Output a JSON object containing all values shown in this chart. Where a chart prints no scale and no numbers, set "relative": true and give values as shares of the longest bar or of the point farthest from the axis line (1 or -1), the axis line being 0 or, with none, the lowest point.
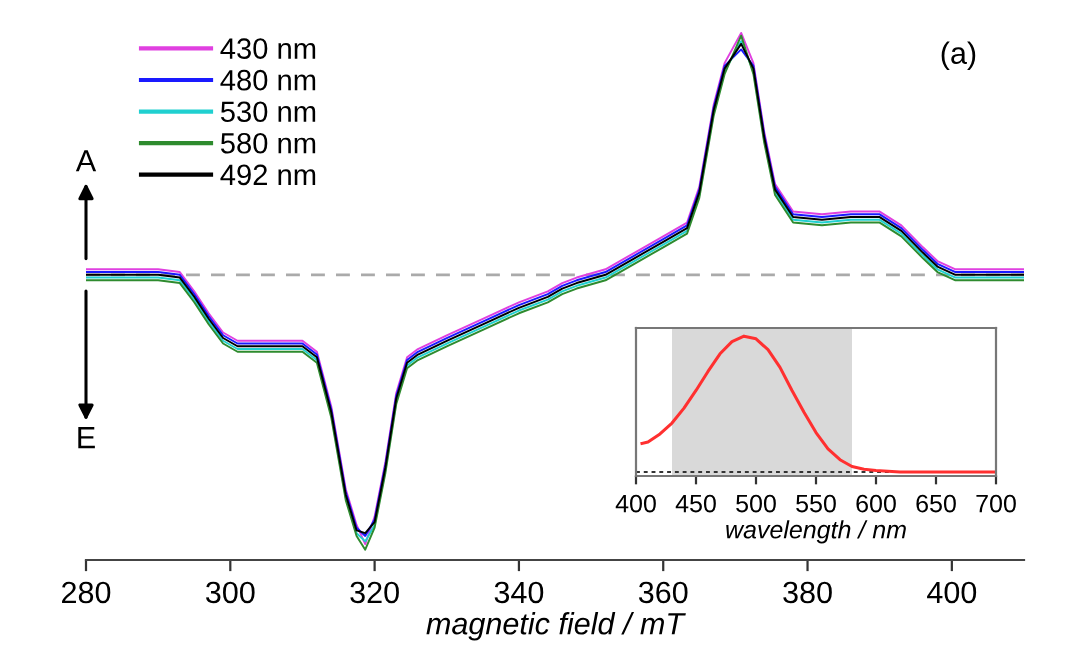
{
  "chart_data": [
    {
      "type": "line",
      "relative": true,
      "xlabel": "magnetic field / mT",
      "xlim": [
        280,
        410
      ],
      "xticks": [
        280,
        300,
        320,
        340,
        360,
        380,
        400
      ],
      "x": [
        280,
        290,
        293,
        295,
        297,
        299,
        301,
        305,
        310,
        312,
        314,
        316,
        317.5,
        318.7,
        320,
        321.5,
        323,
        324.5,
        326,
        330,
        335,
        340,
        344,
        346,
        348,
        352,
        356,
        360,
        363.3,
        365,
        367,
        368.5,
        370.8,
        372.5,
        374,
        375.5,
        378,
        382,
        386,
        390,
        393,
        396,
        398,
        400.5,
        405,
        410
      ],
      "series": [
        {
          "name": "430 nm",
          "color": "#e040e0",
          "values": [
            0.02,
            0.02,
            0.01,
            -0.06,
            -0.14,
            -0.21,
            -0.24,
            -0.24,
            -0.24,
            -0.28,
            -0.48,
            -0.78,
            -0.91,
            -0.98,
            -0.88,
            -0.68,
            -0.43,
            -0.3,
            -0.27,
            -0.22,
            -0.16,
            -0.1,
            -0.06,
            -0.03,
            -0.01,
            0.02,
            0.08,
            0.14,
            0.19,
            0.32,
            0.62,
            0.77,
            0.88,
            0.77,
            0.52,
            0.33,
            0.23,
            0.22,
            0.23,
            0.23,
            0.18,
            0.1,
            0.05,
            0.02,
            0.02,
            0.02
          ]
        },
        {
          "name": "480 nm",
          "color": "#1a1aff",
          "values": [
            0.01,
            0.01,
            0,
            -0.07,
            -0.15,
            -0.22,
            -0.25,
            -0.25,
            -0.25,
            -0.29,
            -0.49,
            -0.79,
            -0.92,
            -0.95,
            -0.89,
            -0.69,
            -0.44,
            -0.31,
            -0.28,
            -0.23,
            -0.17,
            -0.11,
            -0.07,
            -0.04,
            -0.02,
            0.01,
            0.07,
            0.13,
            0.18,
            0.31,
            0.61,
            0.76,
            0.82,
            0.76,
            0.51,
            0.32,
            0.22,
            0.21,
            0.22,
            0.22,
            0.17,
            0.09,
            0.04,
            0.01,
            0.01,
            0.01
          ]
        },
        {
          "name": "530 nm",
          "color": "#20d0d0",
          "values": [
            -0.01,
            -0.01,
            -0.02,
            -0.09,
            -0.17,
            -0.24,
            -0.27,
            -0.27,
            -0.27,
            -0.31,
            -0.51,
            -0.81,
            -0.94,
            -0.97,
            -0.91,
            -0.71,
            -0.46,
            -0.33,
            -0.3,
            -0.25,
            -0.19,
            -0.13,
            -0.09,
            -0.06,
            -0.04,
            -0.01,
            0.05,
            0.11,
            0.16,
            0.29,
            0.59,
            0.74,
            0.85,
            0.74,
            0.49,
            0.3,
            0.2,
            0.19,
            0.2,
            0.2,
            0.15,
            0.07,
            0.02,
            -0.01,
            -0.01,
            -0.01
          ]
        },
        {
          "name": "580 nm",
          "color": "#2e8b2e",
          "values": [
            -0.02,
            -0.02,
            -0.03,
            -0.1,
            -0.18,
            -0.25,
            -0.28,
            -0.28,
            -0.28,
            -0.32,
            -0.52,
            -0.82,
            -0.95,
            -1,
            -0.92,
            -0.72,
            -0.47,
            -0.34,
            -0.31,
            -0.26,
            -0.2,
            -0.14,
            -0.1,
            -0.07,
            -0.05,
            -0.02,
            0.04,
            0.1,
            0.15,
            0.28,
            0.58,
            0.73,
            0.87,
            0.73,
            0.48,
            0.29,
            0.19,
            0.18,
            0.19,
            0.19,
            0.14,
            0.06,
            0.01,
            -0.02,
            -0.02,
            -0.02
          ]
        },
        {
          "name": "492 nm",
          "color": "#000000",
          "values": [
            0,
            0,
            -0.01,
            -0.08,
            -0.16,
            -0.23,
            -0.26,
            -0.26,
            -0.26,
            -0.3,
            -0.5,
            -0.8,
            -0.93,
            -0.94,
            -0.9,
            -0.7,
            -0.45,
            -0.32,
            -0.29,
            -0.24,
            -0.18,
            -0.12,
            -0.08,
            -0.05,
            -0.03,
            0,
            0.06,
            0.12,
            0.17,
            0.3,
            0.6,
            0.75,
            0.84,
            0.75,
            0.5,
            0.31,
            0.21,
            0.2,
            0.21,
            0.21,
            0.16,
            0.08,
            0.03,
            0,
            0,
            0
          ]
        }
      ],
      "ref_lines": [
        {
          "axis": "y",
          "value": 0,
          "color": "#aaaaaa",
          "line_style": "dashed"
        }
      ],
      "legend": "top left",
      "grid": false,
      "tick_labels": "x",
      "annotations": [
        "A",
        "E",
        "(a)"
      ]
    },
    {
      "type": "line",
      "relative": true,
      "xlabel": "wavelength / nm",
      "xlim": [
        400,
        700
      ],
      "xticks": [
        400,
        450,
        500,
        550,
        600,
        650,
        700
      ],
      "x": [
        405,
        410,
        420,
        430,
        440,
        450,
        460,
        470,
        480,
        490,
        500,
        510,
        520,
        530,
        540,
        550,
        560,
        570,
        580,
        590,
        600,
        620,
        650,
        700
      ],
      "series": [
        {
          "color": "#ff3030",
          "values": [
            0.21,
            0.22,
            0.28,
            0.36,
            0.47,
            0.6,
            0.74,
            0.87,
            0.96,
            1.0,
            0.98,
            0.9,
            0.77,
            0.6,
            0.44,
            0.29,
            0.17,
            0.09,
            0.04,
            0.02,
            0.01,
            0,
            0,
            0
          ]
        }
      ],
      "bands": [
        {
          "axis": "x",
          "from": 430,
          "to": 580,
          "color": "#d9d9d9"
        }
      ],
      "ref_lines": [
        {
          "axis": "y",
          "value": 0,
          "color": "#333333",
          "line_style": "dotted"
        }
      ],
      "grid": false,
      "tick_labels": "x"
    }
  ]
}
